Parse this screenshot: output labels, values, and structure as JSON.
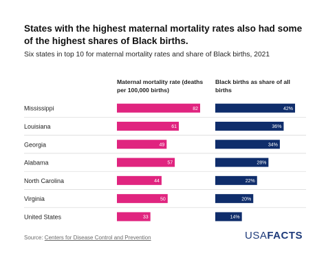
{
  "title": "States with the highest maternal mortality rates also had some of the highest shares of Black births.",
  "subtitle": "Six states in top 10 for maternal mortality rates and share of Black births, 2021",
  "column_headers": {
    "maternal_mortality": "Maternal mortality rate (deaths per 100,000 births)",
    "black_births": "Black births as share of all births"
  },
  "source": {
    "prefix": "Source: ",
    "link_text": "Centers for Disease Control and Prevention"
  },
  "logo": {
    "part1": "USA",
    "part2": "FACTS"
  },
  "colors": {
    "maternal_bar": "#e0247f",
    "black_births_bar": "#0f2d6b",
    "row_divider": "#d6d6d6"
  },
  "chart_data": [
    {
      "type": "bar",
      "orientation": "horizontal",
      "title": "Maternal mortality rate (deaths per 100,000 births)",
      "categories": [
        "Mississippi",
        "Louisiana",
        "Georgia",
        "Alabama",
        "North Carolina",
        "Virginia",
        "United States"
      ],
      "values": [
        82,
        61,
        49,
        57,
        44,
        50,
        33
      ],
      "value_labels": [
        "82",
        "61",
        "49",
        "57",
        "44",
        "50",
        "33"
      ],
      "xlim": [
        0,
        82
      ],
      "color": "#e0247f",
      "grid": false
    },
    {
      "type": "bar",
      "orientation": "horizontal",
      "title": "Black births as share of all births",
      "categories": [
        "Mississippi",
        "Louisiana",
        "Georgia",
        "Alabama",
        "North Carolina",
        "Virginia",
        "United States"
      ],
      "values": [
        42,
        36,
        34,
        28,
        22,
        20,
        14
      ],
      "value_labels": [
        "42%",
        "36%",
        "34%",
        "28%",
        "22%",
        "20%",
        "14%"
      ],
      "xlim": [
        0,
        42
      ],
      "color": "#0f2d6b",
      "grid": false
    }
  ]
}
